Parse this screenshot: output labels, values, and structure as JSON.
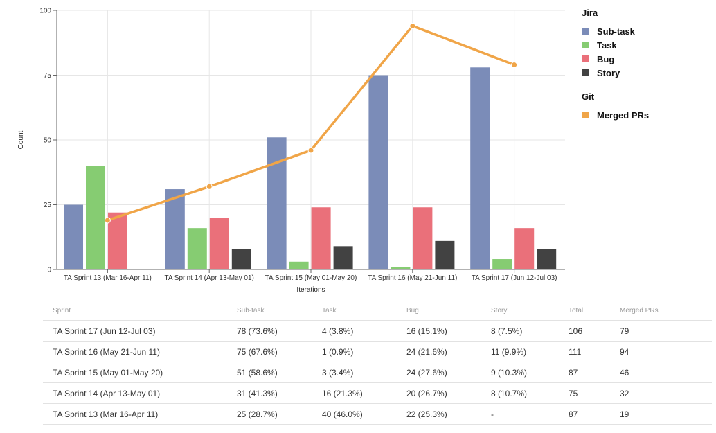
{
  "chart_data": {
    "type": "bar",
    "title": "",
    "xlabel": "Iterations",
    "ylabel": "Count",
    "ylim": [
      0,
      100
    ],
    "yticks": [
      0,
      25,
      50,
      75,
      100
    ],
    "grid": true,
    "legend_placement": "right",
    "categories": [
      "TA Sprint 13 (Mar 16-Apr 11)",
      "TA Sprint 14 (Apr 13-May 01)",
      "TA Sprint 15 (May 01-May 20)",
      "TA Sprint 16 (May 21-Jun 11)",
      "TA Sprint 17 (Jun 12-Jul 03)"
    ],
    "series": [
      {
        "name": "Sub-task",
        "type": "bar",
        "values": [
          25,
          31,
          51,
          75,
          78
        ]
      },
      {
        "name": "Task",
        "type": "bar",
        "values": [
          40,
          16,
          3,
          1,
          4
        ]
      },
      {
        "name": "Bug",
        "type": "bar",
        "values": [
          22,
          20,
          24,
          24,
          16
        ]
      },
      {
        "name": "Story",
        "type": "bar",
        "values": [
          null,
          8,
          9,
          11,
          8
        ]
      },
      {
        "name": "Merged PRs",
        "type": "line",
        "values": [
          19,
          32,
          46,
          94,
          79
        ]
      }
    ]
  },
  "colors": {
    "Sub-task": "#7b8cb8",
    "Task": "#86cc72",
    "Bug": "#ea707a",
    "Story": "#424242",
    "Merged PRs": "#f0a548"
  },
  "legend": {
    "groups": [
      {
        "title": "Jira",
        "items": [
          "Sub-task",
          "Task",
          "Bug",
          "Story"
        ]
      },
      {
        "title": "Git",
        "items": [
          "Merged PRs"
        ]
      }
    ]
  },
  "table": {
    "headers": [
      "Sprint",
      "Sub-task",
      "Task",
      "Bug",
      "Story",
      "Total",
      "Merged PRs"
    ],
    "rows": [
      [
        "TA Sprint 17 (Jun 12-Jul 03)",
        "78 (73.6%)",
        "4 (3.8%)",
        "16 (15.1%)",
        "8 (7.5%)",
        "106",
        "79"
      ],
      [
        "TA Sprint 16 (May 21-Jun 11)",
        "75 (67.6%)",
        "1 (0.9%)",
        "24 (21.6%)",
        "11 (9.9%)",
        "111",
        "94"
      ],
      [
        "TA Sprint 15 (May 01-May 20)",
        "51 (58.6%)",
        "3 (3.4%)",
        "24 (27.6%)",
        "9 (10.3%)",
        "87",
        "46"
      ],
      [
        "TA Sprint 14 (Apr 13-May 01)",
        "31 (41.3%)",
        "16 (21.3%)",
        "20 (26.7%)",
        "8 (10.7%)",
        "75",
        "32"
      ],
      [
        "TA Sprint 13 (Mar 16-Apr 11)",
        "25 (28.7%)",
        "40 (46.0%)",
        "22 (25.3%)",
        "-",
        "87",
        "19"
      ]
    ]
  }
}
